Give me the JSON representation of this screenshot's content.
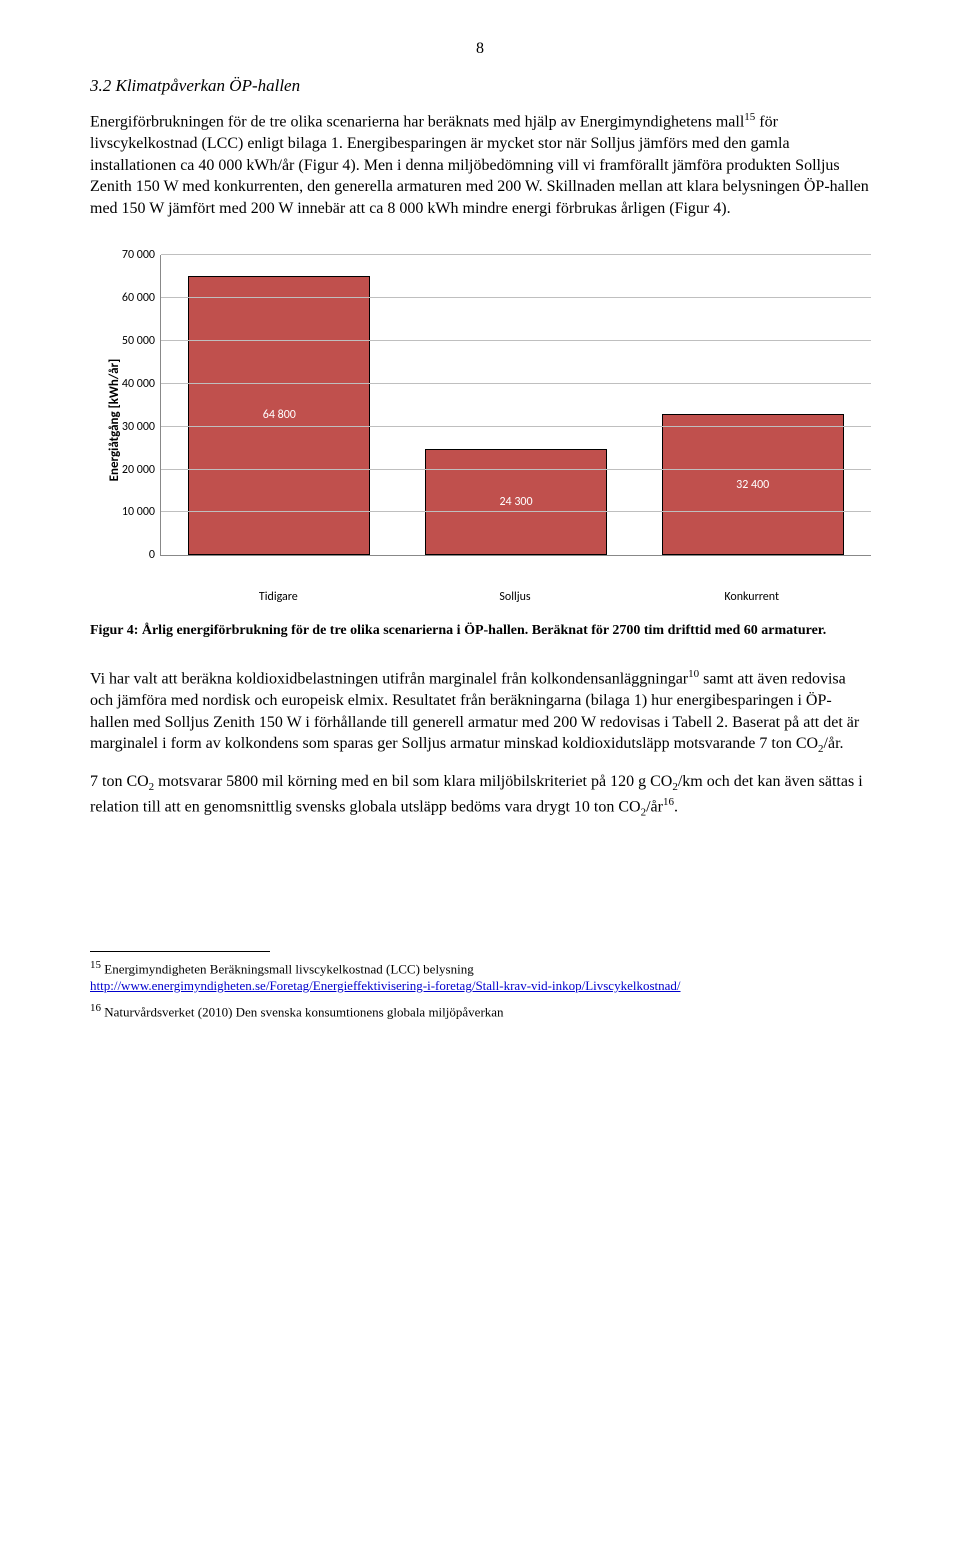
{
  "page_number": "8",
  "section_heading": "3.2  Klimatpåverkan ÖP-hallen",
  "para1_a": "Energiförbrukningen för de tre olika scenarierna har beräknats med hjälp av Energimyndighetens mall",
  "para1_sup": "15",
  "para1_b": " för livscykelkostnad (LCC) enligt bilaga 1. Energibesparingen är mycket stor när Solljus jämförs med den gamla installationen ca 40 000 kWh/år (Figur 4). Men i denna miljöbedömning vill vi framförallt jämföra produkten Solljus Zenith 150 W med konkurrenten, den generella armaturen med 200 W. Skillnaden mellan att klara belysningen ÖP-hallen med 150 W jämfört med 200 W innebär att ca 8 000 kWh mindre energi förbrukas årligen (Figur 4).",
  "chart": {
    "type": "bar",
    "y_label": "Energiåtgång [kWh/år]",
    "y_max": 70000,
    "y_step": 10000,
    "y_ticks": [
      "0",
      "10 000",
      "20 000",
      "30 000",
      "40 000",
      "50 000",
      "60 000",
      "70 000"
    ],
    "bar_color": "#c0504d",
    "bar_border": "#000000",
    "grid_color": "#bfbfbf",
    "axis_color": "#888888",
    "value_text_color": "#ffffff",
    "label_font": "Calibri",
    "categories": [
      "Tidigare",
      "Solljus",
      "Konkurrent"
    ],
    "values": [
      64800,
      24300,
      32400
    ],
    "value_labels": [
      "64 800",
      "24 300",
      "32 400"
    ]
  },
  "figure_caption": "Figur 4: Årlig energiförbrukning för de tre olika scenarierna i ÖP-hallen. Beräknat för 2700 tim drifttid med 60 armaturer.",
  "para2_a": "Vi har valt att beräkna koldioxidbelastningen utifrån marginalel från kolkondensanläggningar",
  "para2_sup": "10",
  "para2_b": " samt att även redovisa och jämföra med nordisk och europeisk elmix. Resultatet från beräkningarna (bilaga 1) hur energibesparingen i ÖP-hallen med Solljus Zenith 150 W i förhållande till generell armatur med 200 W redovisas i Tabell 2. Baserat på att det är marginalel i form av kolkondens som sparas ger Solljus armatur minskad koldioxidutsläpp motsvarande 7 ton CO",
  "para2_sub": "2",
  "para2_c": "/år.",
  "para3_a": "7 ton CO",
  "para3_sub1": "2",
  "para3_b": " motsvarar 5800 mil körning med en bil som klara miljöbilskriteriet på 120 g CO",
  "para3_sub2": "2",
  "para3_c": "/km och det kan även sättas i relation till att en genomsnittlig svensks globala utsläpp bedöms vara drygt 10 ton CO",
  "para3_sub3": "2",
  "para3_d": "/år",
  "para3_sup": "16",
  "para3_e": ".",
  "footnote15_num": "15",
  "footnote15_text": " Energimyndigheten Beräkningsmall livscykelkostnad (LCC) belysning",
  "footnote15_link": "http://www.energimyndigheten.se/Foretag/Energieffektivisering-i-foretag/Stall-krav-vid-inkop/Livscykelkostnad/",
  "footnote16_num": "16",
  "footnote16_text": " Naturvårdsverket (2010) Den svenska konsumtionens globala miljöpåverkan"
}
